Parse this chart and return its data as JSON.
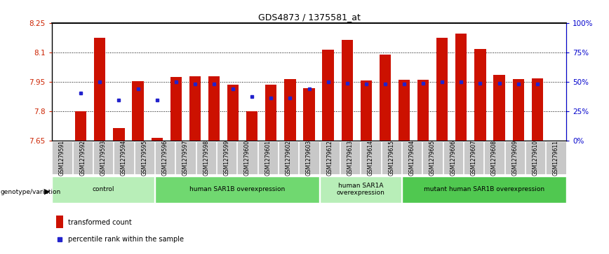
{
  "title": "GDS4873 / 1375581_at",
  "samples": [
    "GSM1279591",
    "GSM1279592",
    "GSM1279593",
    "GSM1279594",
    "GSM1279595",
    "GSM1279596",
    "GSM1279597",
    "GSM1279598",
    "GSM1279599",
    "GSM1279600",
    "GSM1279601",
    "GSM1279602",
    "GSM1279603",
    "GSM1279612",
    "GSM1279613",
    "GSM1279614",
    "GSM1279615",
    "GSM1279604",
    "GSM1279605",
    "GSM1279606",
    "GSM1279607",
    "GSM1279608",
    "GSM1279609",
    "GSM1279610",
    "GSM1279611"
  ],
  "bar_values": [
    7.802,
    8.175,
    7.715,
    7.955,
    7.665,
    7.975,
    7.978,
    7.978,
    7.935,
    7.8,
    7.935,
    7.965,
    7.92,
    8.115,
    8.165,
    7.958,
    8.088,
    7.96,
    7.96,
    8.175,
    8.195,
    8.118,
    7.985,
    7.965,
    7.968
  ],
  "percentile_values": [
    7.892,
    7.95,
    7.858,
    7.916,
    7.858,
    7.95,
    7.938,
    7.938,
    7.916,
    7.875,
    7.87,
    7.87,
    7.916,
    7.95,
    7.944,
    7.938,
    7.938,
    7.938,
    7.944,
    7.95,
    7.95,
    7.944,
    7.944,
    7.938,
    7.938
  ],
  "groups": [
    {
      "label": "control",
      "start": 0,
      "end": 5,
      "color": "#b8eeb8"
    },
    {
      "label": "human SAR1B overexpression",
      "start": 5,
      "end": 13,
      "color": "#70d870"
    },
    {
      "label": "human SAR1A\noverexpression",
      "start": 13,
      "end": 17,
      "color": "#b8eeb8"
    },
    {
      "label": "mutant human SAR1B overexpression",
      "start": 17,
      "end": 25,
      "color": "#50c850"
    }
  ],
  "ylim": [
    7.65,
    8.25
  ],
  "y_ticks": [
    7.65,
    7.8,
    7.95,
    8.1,
    8.25
  ],
  "right_ticks": [
    0,
    25,
    50,
    75,
    100
  ],
  "bar_color": "#cc1100",
  "dot_color": "#2222cc",
  "baseline": 7.65,
  "bg_color": "#ffffff",
  "xtick_bg": "#c8c8c8"
}
